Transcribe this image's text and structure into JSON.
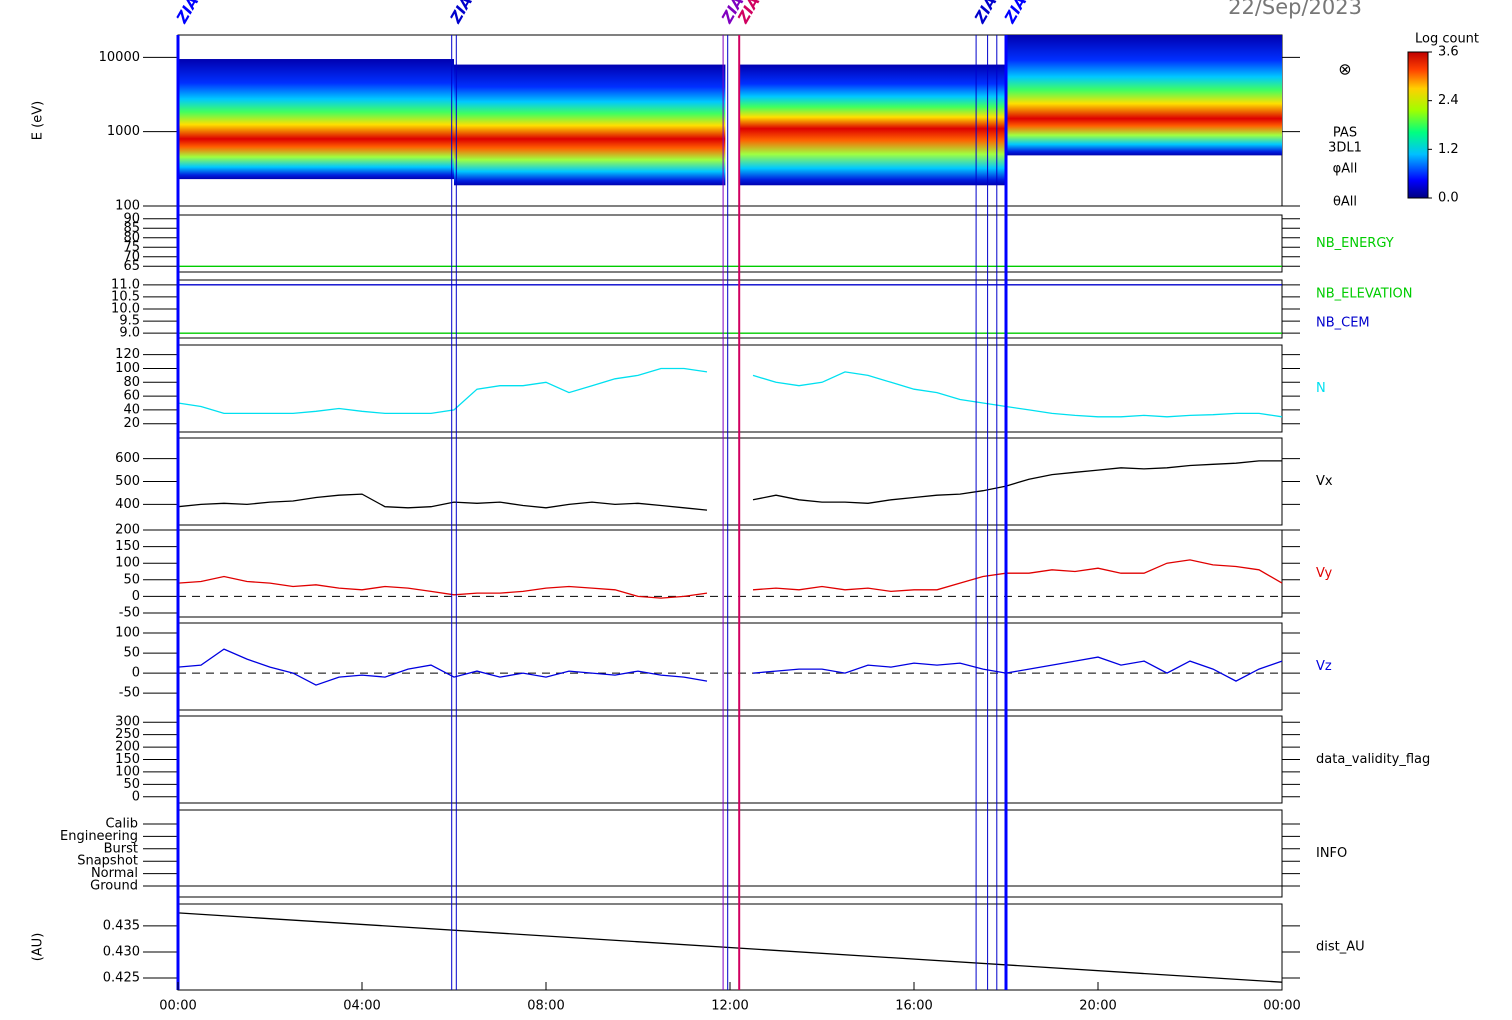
{
  "date": "22/Sep/2023",
  "xaxis": {
    "xlim": [
      0,
      24
    ],
    "xticks": [
      {
        "value": 0,
        "label": "00:00"
      },
      {
        "value": 4,
        "label": "04:00"
      },
      {
        "value": 8,
        "label": "08:00"
      },
      {
        "value": 12,
        "label": "12:00"
      },
      {
        "value": 16,
        "label": "16:00"
      },
      {
        "value": 20,
        "label": "20:00"
      },
      {
        "value": 24,
        "label": "00:00"
      }
    ]
  },
  "events": [
    {
      "x": 0,
      "label": "ZIAS",
      "color": "#0000ff",
      "width": 3
    },
    {
      "x": 5.95,
      "label": "ZIAS",
      "color": "#0000cc",
      "width": 1
    },
    {
      "x": 6.05,
      "color": "#0000cc",
      "width": 1
    },
    {
      "x": 11.85,
      "label": "ZIAS",
      "color": "#8000c0",
      "width": 1
    },
    {
      "x": 11.95,
      "color": "#0000cc",
      "width": 1
    },
    {
      "x": 12.2,
      "label": "ZIAS",
      "color": "#d00060",
      "width": 2
    },
    {
      "x": 17.35,
      "label": "ZIAS",
      "color": "#0000cc",
      "width": 1
    },
    {
      "x": 17.6,
      "color": "#0000cc",
      "width": 1
    },
    {
      "x": 17.8,
      "color": "#0000cc",
      "width": 1
    },
    {
      "x": 18,
      "label": "ZIAS",
      "color": "#0000ff",
      "width": 3
    }
  ],
  "chart_data": [
    {
      "type": "spectrogram",
      "ylabel": "E (eV)",
      "log": true,
      "ylim": [
        100,
        20000
      ],
      "yticks": [
        100,
        1000,
        10000
      ],
      "segments": [
        {
          "start": 0,
          "end": 6,
          "emin": 230,
          "emax": 9500,
          "peak": 800
        },
        {
          "start": 6,
          "end": 11.9,
          "emin": 190,
          "emax": 8000,
          "peak": 800
        },
        {
          "start": 12.2,
          "end": 18,
          "emin": 190,
          "emax": 8000,
          "peak": 1100
        },
        {
          "start": 18,
          "end": 24,
          "emin": 480,
          "emax": 20000,
          "peak": 1500
        }
      ],
      "colorbar": {
        "title": "Log count",
        "lim": [
          0,
          3.6
        ],
        "ticks": [
          {
            "value": 0,
            "label": "0.0"
          },
          {
            "value": 1.2,
            "label": "1.2"
          },
          {
            "value": 2.4,
            "label": "2.4"
          },
          {
            "value": 3.6,
            "label": "3.6"
          }
        ]
      },
      "symbol": "⊗",
      "labels": [
        "PAS",
        "3DL1",
        "φAll",
        "θAll"
      ]
    },
    {
      "type": "line",
      "ylim": [
        62,
        92
      ],
      "yticks": [
        65,
        70,
        75,
        80,
        85,
        90
      ],
      "series": [
        {
          "name": "NB_ENERGY",
          "color": "#00cc00",
          "x": [
            0,
            24
          ],
          "values": [
            65,
            65
          ]
        }
      ]
    },
    {
      "type": "line",
      "ylim": [
        8.8,
        11.2
      ],
      "yticks": [
        {
          "value": 9,
          "label": "9.0"
        },
        {
          "value": 9.5,
          "label": "9.5"
        },
        {
          "value": 10,
          "label": "10.0"
        },
        {
          "value": 10.5,
          "label": "10.5"
        },
        {
          "value": 11,
          "label": "11.0"
        }
      ],
      "series": [
        {
          "name": "NB_ELEVATION",
          "color": "#00cc00",
          "x": [
            0,
            24
          ],
          "values": [
            9,
            9
          ]
        },
        {
          "name": "NB_CEM",
          "color": "#0000cc",
          "x": [
            0,
            24
          ],
          "values": [
            11,
            11
          ]
        }
      ]
    },
    {
      "type": "line",
      "ylim": [
        8,
        134
      ],
      "yticks": [
        20,
        40,
        60,
        80,
        100,
        120
      ],
      "series": [
        {
          "name": "N",
          "color": "#00e0f0",
          "x": [
            0,
            0.5,
            1,
            1.5,
            2,
            2.5,
            3,
            3.5,
            4,
            4.5,
            5,
            5.5,
            6,
            6.5,
            7,
            7.5,
            8,
            8.5,
            9,
            9.5,
            10,
            10.5,
            11,
            11.5,
            12,
            12.5,
            13,
            13.5,
            14,
            14.5,
            15,
            15.5,
            16,
            16.5,
            17,
            17.5,
            18,
            18.5,
            19,
            19.5,
            20,
            20.5,
            21,
            21.5,
            22,
            22.5,
            23,
            23.5,
            24
          ],
          "values": [
            50,
            45,
            35,
            35,
            35,
            35,
            38,
            42,
            38,
            35,
            35,
            35,
            40,
            70,
            75,
            75,
            80,
            65,
            75,
            85,
            90,
            100,
            100,
            95,
            null,
            90,
            80,
            75,
            80,
            95,
            90,
            80,
            70,
            65,
            55,
            50,
            45,
            40,
            35,
            32,
            30,
            30,
            32,
            30,
            32,
            33,
            35,
            35,
            30
          ]
        }
      ]
    },
    {
      "type": "line",
      "ylim": [
        310,
        690
      ],
      "yticks": [
        400,
        500,
        600
      ],
      "series": [
        {
          "name": "Vx",
          "color": "#000000",
          "x": [
            0,
            0.5,
            1,
            1.5,
            2,
            2.5,
            3,
            3.5,
            4,
            4.5,
            5,
            5.5,
            6,
            6.5,
            7,
            7.5,
            8,
            8.5,
            9,
            9.5,
            10,
            10.5,
            11,
            11.5,
            12,
            12.5,
            13,
            13.5,
            14,
            14.5,
            15,
            15.5,
            16,
            16.5,
            17,
            17.5,
            18,
            18.5,
            19,
            19.5,
            20,
            20.5,
            21,
            21.5,
            22,
            22.5,
            23,
            23.5,
            24
          ],
          "values": [
            390,
            400,
            405,
            400,
            410,
            415,
            430,
            440,
            445,
            390,
            385,
            390,
            410,
            405,
            410,
            395,
            385,
            400,
            410,
            400,
            405,
            395,
            385,
            375,
            null,
            420,
            440,
            420,
            410,
            410,
            405,
            420,
            430,
            440,
            445,
            460,
            480,
            510,
            530,
            540,
            550,
            560,
            555,
            560,
            570,
            575,
            580,
            590,
            590
          ]
        }
      ]
    },
    {
      "type": "line",
      "ylim": [
        -62,
        200
      ],
      "yticks": [
        -50,
        0,
        50,
        100,
        150,
        200
      ],
      "zero_line": true,
      "series": [
        {
          "name": "Vy",
          "color": "#e00000",
          "x": [
            0,
            0.5,
            1,
            1.5,
            2,
            2.5,
            3,
            3.5,
            4,
            4.5,
            5,
            5.5,
            6,
            6.5,
            7,
            7.5,
            8,
            8.5,
            9,
            9.5,
            10,
            10.5,
            11,
            11.5,
            12,
            12.5,
            13,
            13.5,
            14,
            14.5,
            15,
            15.5,
            16,
            16.5,
            17,
            17.5,
            18,
            18.5,
            19,
            19.5,
            20,
            20.5,
            21,
            21.5,
            22,
            22.5,
            23,
            23.5,
            24
          ],
          "values": [
            40,
            45,
            60,
            45,
            40,
            30,
            35,
            25,
            20,
            30,
            25,
            15,
            5,
            10,
            10,
            15,
            25,
            30,
            25,
            20,
            0,
            -5,
            0,
            10,
            null,
            20,
            25,
            20,
            30,
            20,
            25,
            15,
            20,
            20,
            40,
            60,
            70,
            70,
            80,
            75,
            85,
            70,
            70,
            100,
            110,
            95,
            90,
            80,
            40
          ]
        }
      ]
    },
    {
      "type": "line",
      "ylim": [
        -92,
        125
      ],
      "yticks": [
        -50,
        0,
        50,
        100
      ],
      "zero_line": true,
      "series": [
        {
          "name": "Vz",
          "color": "#0000e0",
          "x": [
            0,
            0.5,
            1,
            1.5,
            2,
            2.5,
            3,
            3.5,
            4,
            4.5,
            5,
            5.5,
            6,
            6.5,
            7,
            7.5,
            8,
            8.5,
            9,
            9.5,
            10,
            10.5,
            11,
            11.5,
            12,
            12.5,
            13,
            13.5,
            14,
            14.5,
            15,
            15.5,
            16,
            16.5,
            17,
            17.5,
            18,
            18.5,
            19,
            19.5,
            20,
            20.5,
            21,
            21.5,
            22,
            22.5,
            23,
            23.5,
            24
          ],
          "values": [
            15,
            20,
            60,
            35,
            15,
            0,
            -30,
            -10,
            -5,
            -10,
            10,
            20,
            -10,
            5,
            -10,
            0,
            -10,
            5,
            0,
            -5,
            5,
            -5,
            -10,
            -20,
            null,
            0,
            5,
            10,
            10,
            0,
            20,
            15,
            25,
            20,
            25,
            10,
            0,
            10,
            20,
            30,
            40,
            20,
            30,
            0,
            30,
            10,
            -20,
            10,
            30
          ]
        }
      ]
    },
    {
      "type": "empty",
      "label": "data_validity_flag",
      "ylim": [
        -25,
        325
      ],
      "yticks": [
        0,
        50,
        100,
        150,
        200,
        250,
        300
      ]
    },
    {
      "type": "category",
      "label": "INFO",
      "categories": [
        "Calib",
        "Engineering",
        "Burst",
        "Snapshot",
        "Normal",
        "Ground"
      ]
    },
    {
      "type": "line",
      "ylabel": "(AU)",
      "ylim": [
        0.4227,
        0.4392
      ],
      "yticks": [
        0.425,
        {
          "value": 0.43,
          "label": "0.430"
        },
        0.435
      ],
      "series": [
        {
          "name": "dist_AU",
          "color": "#000000",
          "x": [
            0,
            24
          ],
          "values": [
            0.4375,
            0.4242
          ]
        }
      ]
    }
  ]
}
